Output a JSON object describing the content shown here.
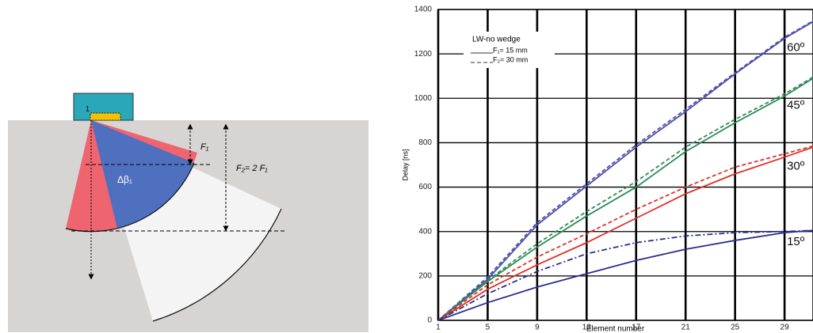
{
  "diagram": {
    "probe_label": "1",
    "f1_label": "F₁",
    "f2_label": "F₂= 2 F₁",
    "beam_label": "Δβ₁"
  },
  "chart_data": {
    "type": "line",
    "xlabel": "Element number",
    "ylabel": "Delay [ns]",
    "x": [
      1,
      5,
      9,
      13,
      17,
      21,
      25,
      29,
      31.3
    ],
    "xlim": [
      1,
      31.3
    ],
    "xticks": [
      1,
      5,
      9,
      13,
      17,
      21,
      25,
      29
    ],
    "ylim": [
      0,
      1400
    ],
    "yticks": [
      0,
      200,
      400,
      600,
      800,
      1000,
      1200,
      1400
    ],
    "grid": true,
    "legend": {
      "title": "LW-no wedge",
      "entries": [
        "F₁= 15 mm",
        "F₂= 30 mm"
      ]
    },
    "series": [
      {
        "legend": 0,
        "color": "#4b4fa8",
        "values": [
          0,
          185,
          430,
          605,
          780,
          940,
          1110,
          1270,
          1345
        ]
      },
      {
        "legend": 1,
        "color": "#4b4fa8",
        "values": [
          0,
          195,
          440,
          615,
          790,
          950,
          1115,
          1275,
          1348
        ]
      },
      {
        "legend": 0,
        "color": "#2e8b57",
        "values": [
          0,
          175,
          330,
          470,
          600,
          760,
          890,
          1010,
          1090
        ]
      },
      {
        "legend": 1,
        "color": "#2e8b57",
        "values": [
          0,
          180,
          345,
          490,
          625,
          780,
          905,
          1020,
          1095
        ]
      },
      {
        "legend": 0,
        "color": "#e0302a",
        "values": [
          0,
          140,
          250,
          350,
          460,
          570,
          660,
          735,
          780
        ]
      },
      {
        "legend": 1,
        "color": "#e0302a",
        "values": [
          0,
          160,
          285,
          390,
          500,
          600,
          690,
          750,
          785
        ]
      },
      {
        "legend": 0,
        "color": "#2a2f8a",
        "values": [
          0,
          80,
          150,
          210,
          270,
          320,
          360,
          395,
          405
        ]
      },
      {
        "legend": 1,
        "color": "#2a2f8a",
        "values": [
          0,
          120,
          220,
          300,
          350,
          380,
          395,
          400,
          405
        ]
      }
    ],
    "curve_labels": [
      {
        "text": "60º",
        "series": 0
      },
      {
        "text": "45º",
        "series": 2
      },
      {
        "text": "30º",
        "series": 4
      },
      {
        "text": "15º",
        "series": 6
      }
    ]
  }
}
